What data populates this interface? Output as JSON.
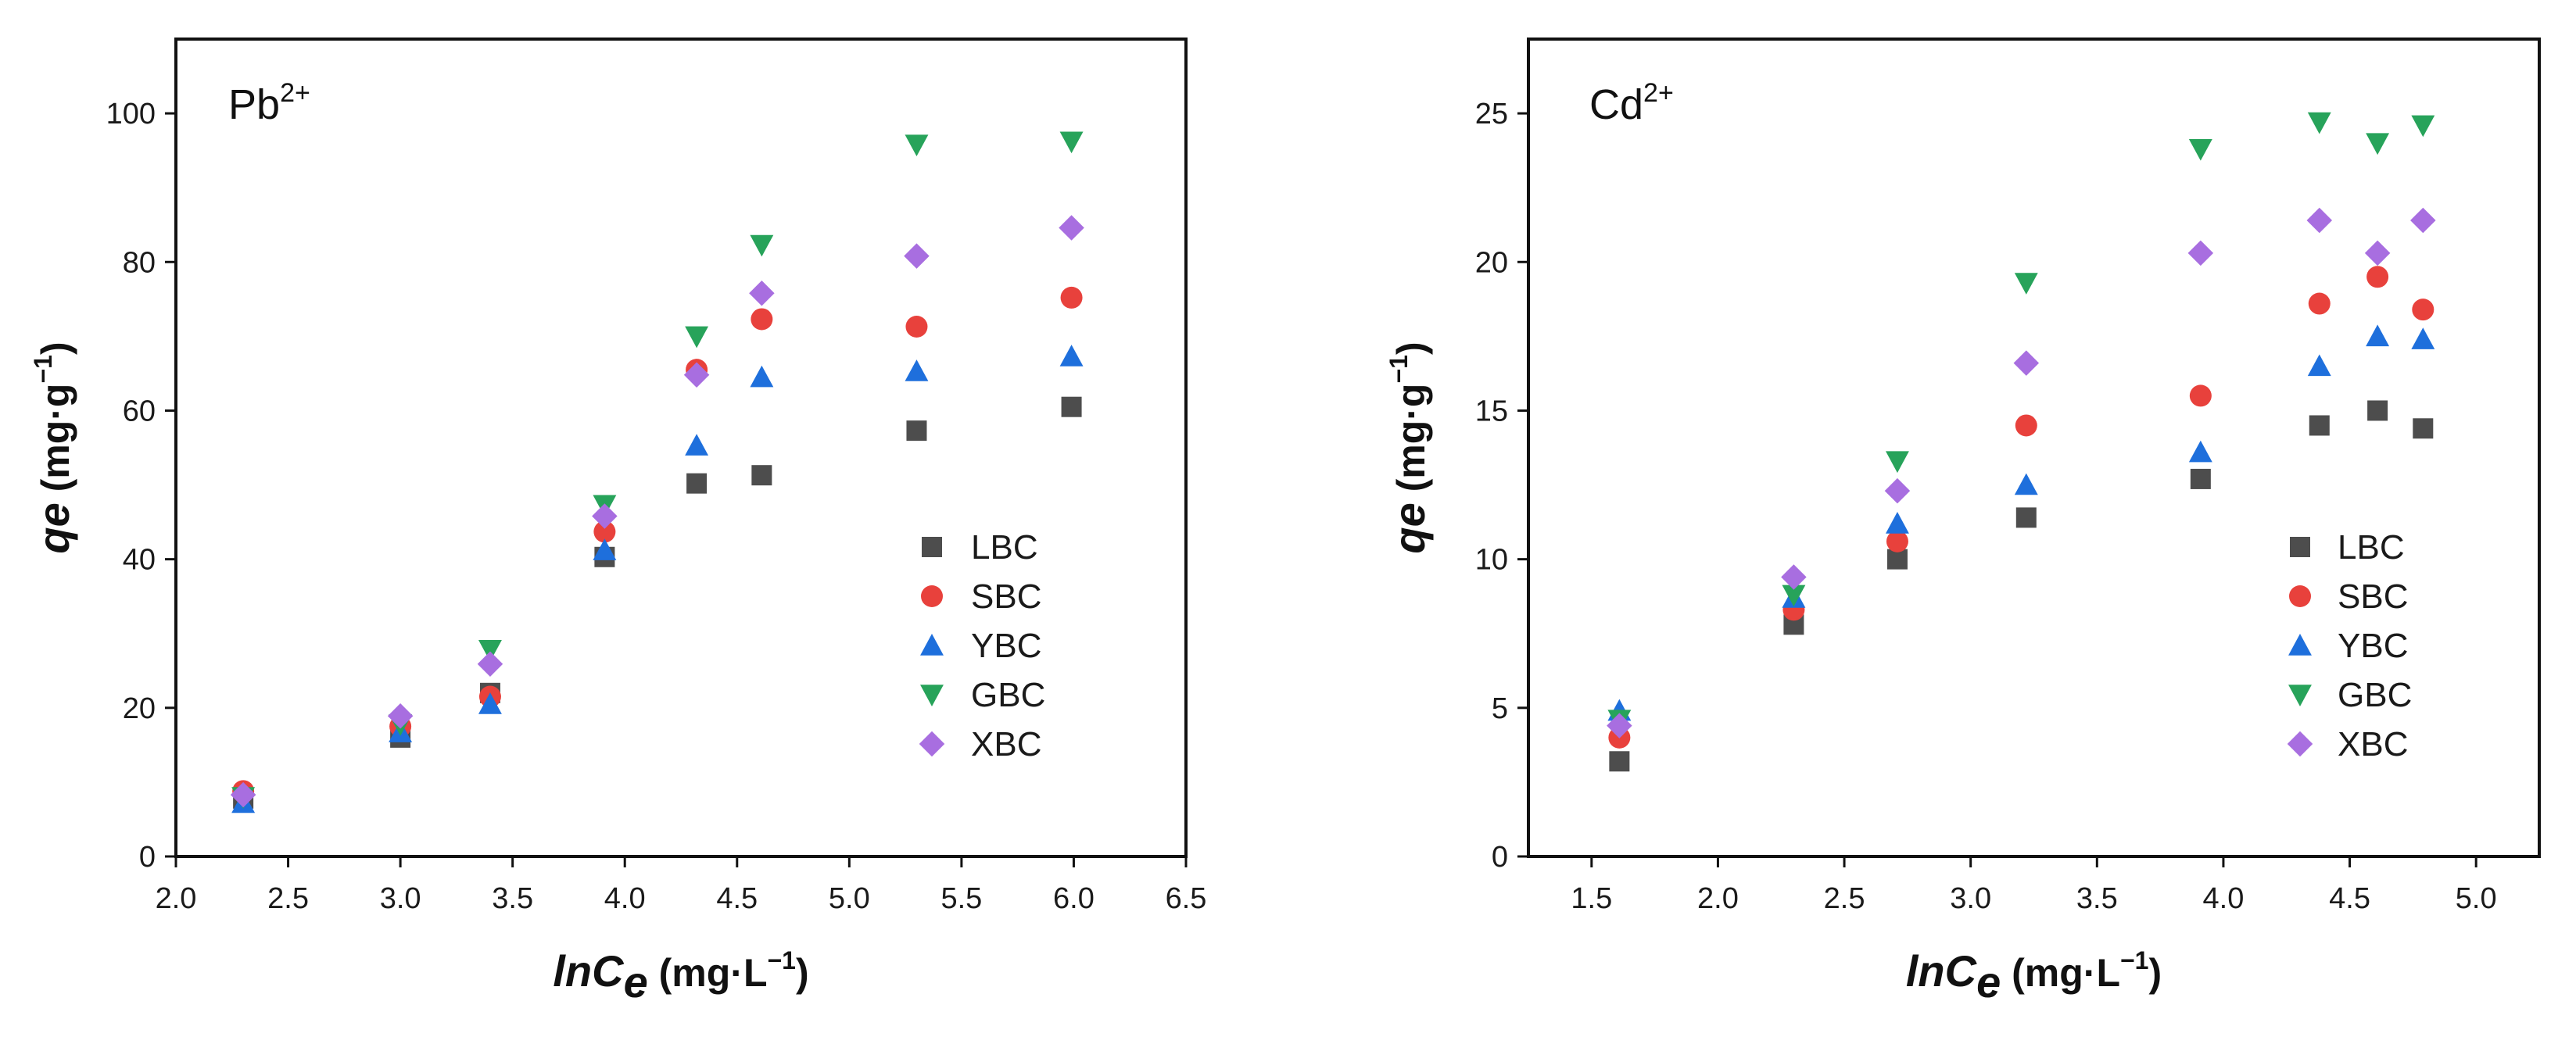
{
  "chart_data": [
    {
      "type": "scatter",
      "title_main": "Pb",
      "title_sup": "2+",
      "xlabel_ital": "lnC",
      "xlabel_sub": "e",
      "xlabel_unit_pre": " (mg·L",
      "xlabel_unit_sup": "−1",
      "xlabel_unit_post": ")",
      "ylabel_ital": "qe",
      "ylabel_unit_pre": " (mg·g",
      "ylabel_unit_sup": "−1",
      "ylabel_unit_post": ")",
      "xlim": [
        2.0,
        6.5
      ],
      "ylim": [
        0,
        110
      ],
      "xticks": [
        "2.0",
        "2.5",
        "3.0",
        "3.5",
        "4.0",
        "4.5",
        "5.0",
        "5.5",
        "6.0",
        "6.5"
      ],
      "xtick_values": [
        2.0,
        2.5,
        3.0,
        3.5,
        4.0,
        4.5,
        5.0,
        5.5,
        6.0,
        6.5
      ],
      "yticks": [
        "0",
        "20",
        "40",
        "60",
        "80",
        "100"
      ],
      "ytick_values": [
        0,
        20,
        40,
        60,
        80,
        100
      ],
      "legend_placement": "center-right",
      "grid": false,
      "x": [
        2.3,
        3.0,
        3.4,
        3.91,
        4.32,
        4.61,
        5.3,
        5.99
      ],
      "series": [
        {
          "name": "LBC",
          "marker": "square",
          "color": "#4d4d4d",
          "values": [
            7.8,
            16.0,
            22.0,
            40.3,
            50.2,
            51.3,
            57.3,
            60.5
          ]
        },
        {
          "name": "SBC",
          "marker": "circle",
          "color": "#e8413c",
          "values": [
            8.8,
            17.5,
            21.5,
            43.7,
            65.5,
            72.3,
            71.3,
            75.2
          ]
        },
        {
          "name": "YBC",
          "marker": "triangle-up",
          "color": "#1e6fdc",
          "values": [
            7.2,
            16.7,
            20.5,
            41.2,
            55.3,
            64.5,
            65.3,
            67.3
          ]
        },
        {
          "name": "GBC",
          "marker": "triangle-down",
          "color": "#27a35a",
          "values": [
            8.0,
            17.8,
            27.8,
            47.3,
            70.0,
            82.3,
            95.8,
            96.2
          ]
        },
        {
          "name": "XBC",
          "marker": "diamond",
          "color": "#a86ee0",
          "values": [
            8.3,
            18.9,
            25.9,
            45.8,
            64.8,
            75.8,
            80.8,
            84.6
          ]
        }
      ]
    },
    {
      "type": "scatter",
      "title_main": "Cd",
      "title_sup": "2+",
      "xlabel_ital": "lnC",
      "xlabel_sub": "e",
      "xlabel_unit_pre": " (mg·L",
      "xlabel_unit_sup": "−1",
      "xlabel_unit_post": ")",
      "ylabel_ital": "qe",
      "ylabel_unit_pre": " (mg·g",
      "ylabel_unit_sup": "−1",
      "ylabel_unit_post": ")",
      "xlim": [
        1.25,
        5.25
      ],
      "ylim": [
        0,
        27.5
      ],
      "xticks": [
        "1.5",
        "2.0",
        "2.5",
        "3.0",
        "3.5",
        "4.0",
        "4.5",
        "5.0"
      ],
      "xtick_values": [
        1.5,
        2.0,
        2.5,
        3.0,
        3.5,
        4.0,
        4.5,
        5.0
      ],
      "yticks": [
        "0",
        "5",
        "10",
        "15",
        "20",
        "25"
      ],
      "ytick_values": [
        0,
        5,
        10,
        15,
        20,
        25
      ],
      "legend_placement": "center-right",
      "grid": false,
      "x": [
        1.61,
        2.3,
        2.71,
        3.22,
        3.91,
        4.38,
        4.61,
        4.79
      ],
      "series": [
        {
          "name": "LBC",
          "marker": "square",
          "color": "#4d4d4d",
          "values": [
            3.2,
            7.8,
            10.0,
            11.4,
            12.7,
            14.5,
            15.0,
            14.4
          ]
        },
        {
          "name": "SBC",
          "marker": "circle",
          "color": "#e8413c",
          "values": [
            4.0,
            8.3,
            10.6,
            14.5,
            15.5,
            18.6,
            19.5,
            18.4
          ]
        },
        {
          "name": "YBC",
          "marker": "triangle-up",
          "color": "#1e6fdc",
          "values": [
            4.9,
            8.7,
            11.2,
            12.5,
            13.6,
            16.5,
            17.5,
            17.4
          ]
        },
        {
          "name": "GBC",
          "marker": "triangle-down",
          "color": "#27a35a",
          "values": [
            4.6,
            8.8,
            13.3,
            19.3,
            23.8,
            24.7,
            24.0,
            24.6
          ]
        },
        {
          "name": "XBC",
          "marker": "diamond",
          "color": "#a86ee0",
          "values": [
            4.4,
            9.4,
            12.3,
            16.6,
            20.3,
            21.4,
            20.3,
            21.4
          ]
        }
      ]
    }
  ]
}
